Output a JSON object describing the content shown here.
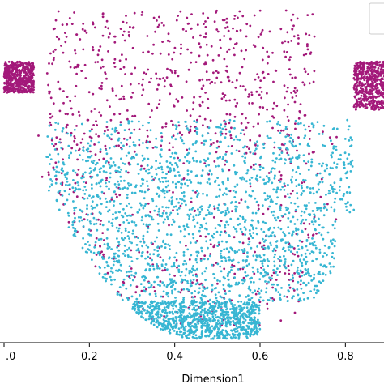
{
  "chart_data": {
    "type": "scatter",
    "title": "",
    "xlabel": "Dimension1",
    "ylabel": "",
    "xlim": [
      0.0,
      0.9
    ],
    "ylim": [
      0.0,
      1.0
    ],
    "x_ticks": [
      0.0,
      0.2,
      0.4,
      0.6,
      0.8
    ],
    "x_tick_labels": [
      ".0",
      "0.2",
      "0.4",
      "0.6",
      "0.8"
    ],
    "grid": false,
    "legend": "top-right",
    "series": [
      {
        "color": "#a3197a",
        "marker": "dot",
        "approx_count": 2600,
        "regions": [
          {
            "x": [
              0.1,
              0.73
            ],
            "y": [
              0.62,
              0.97
            ]
          },
          {
            "x": [
              0.0,
              0.07
            ],
            "y": [
              0.73,
              0.82
            ]
          },
          {
            "x": [
              0.82,
              0.9
            ],
            "y": [
              0.68,
              0.82
            ]
          },
          {
            "x": [
              0.08,
              0.78
            ],
            "y": [
              0.3,
              0.62
            ]
          },
          {
            "x": [
              0.16,
              0.7
            ],
            "y": [
              0.05,
              0.3
            ]
          }
        ]
      },
      {
        "color": "#37b6d3",
        "marker": "dot",
        "approx_count": 3200,
        "regions": [
          {
            "x": [
              0.1,
              0.82
            ],
            "y": [
              0.38,
              0.65
            ]
          },
          {
            "x": [
              0.15,
              0.78
            ],
            "y": [
              0.12,
              0.38
            ]
          },
          {
            "x": [
              0.3,
              0.6
            ],
            "y": [
              0.01,
              0.12
            ]
          }
        ]
      }
    ]
  }
}
